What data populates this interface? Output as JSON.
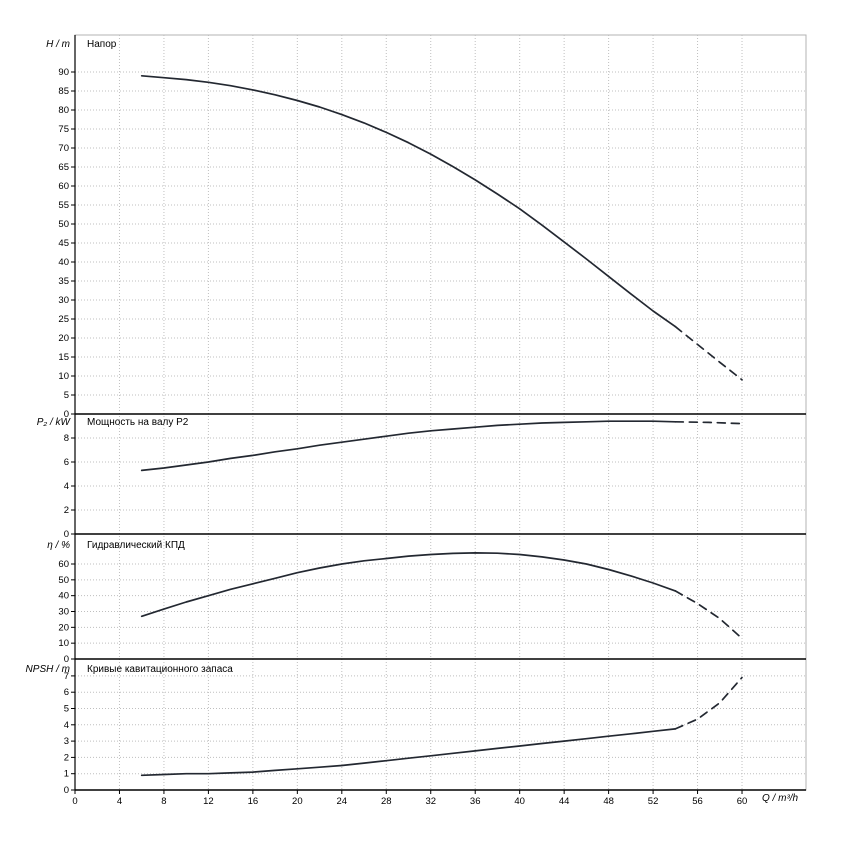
{
  "chart_data": {
    "type": "line",
    "grid": true,
    "legend": "none",
    "colors": {
      "curve": "#232831",
      "grid": "#bfbfbf",
      "axis": "#000000",
      "frame": "#b3b3b3"
    },
    "x_axis": {
      "label": "Q / m³/h",
      "min": 0,
      "max": 60,
      "tick_step": 4
    },
    "panels": [
      {
        "id": "head",
        "title": "Напор",
        "y_label": "H / m",
        "y_min": 0,
        "y_max": 90,
        "y_tick_step": 5,
        "series": [
          {
            "name": "head-curve",
            "style": "solid",
            "points": [
              [
                6,
                89.0
              ],
              [
                8,
                88.5
              ],
              [
                10,
                88.0
              ],
              [
                12,
                87.3
              ],
              [
                14,
                86.4
              ],
              [
                16,
                85.3
              ],
              [
                18,
                84.0
              ],
              [
                20,
                82.5
              ],
              [
                22,
                80.8
              ],
              [
                24,
                78.8
              ],
              [
                26,
                76.6
              ],
              [
                28,
                74.1
              ],
              [
                30,
                71.4
              ],
              [
                32,
                68.4
              ],
              [
                34,
                65.1
              ],
              [
                36,
                61.6
              ],
              [
                38,
                57.9
              ],
              [
                40,
                54.0
              ],
              [
                42,
                49.7
              ],
              [
                44,
                45.3
              ],
              [
                46,
                40.8
              ],
              [
                48,
                36.2
              ],
              [
                50,
                31.6
              ],
              [
                52,
                27.1
              ],
              [
                54,
                23.0
              ]
            ]
          },
          {
            "name": "head-extrapolation",
            "style": "dashed",
            "points": [
              [
                54,
                23.0
              ],
              [
                56,
                18.3
              ],
              [
                58,
                13.6
              ],
              [
                60,
                9.0
              ]
            ]
          }
        ]
      },
      {
        "id": "power",
        "title": "Мощность на валу P2",
        "y_label": "P₂ / kW",
        "y_min": 0,
        "y_max": 8,
        "y_tick_step": 2,
        "series": [
          {
            "name": "power-curve",
            "style": "solid",
            "points": [
              [
                6,
                5.3
              ],
              [
                8,
                5.5
              ],
              [
                10,
                5.75
              ],
              [
                12,
                6.0
              ],
              [
                14,
                6.3
              ],
              [
                16,
                6.55
              ],
              [
                18,
                6.85
              ],
              [
                20,
                7.1
              ],
              [
                22,
                7.4
              ],
              [
                24,
                7.65
              ],
              [
                26,
                7.9
              ],
              [
                28,
                8.15
              ],
              [
                30,
                8.4
              ],
              [
                32,
                8.6
              ],
              [
                34,
                8.75
              ],
              [
                36,
                8.9
              ],
              [
                38,
                9.05
              ],
              [
                40,
                9.15
              ],
              [
                42,
                9.25
              ],
              [
                44,
                9.3
              ],
              [
                46,
                9.35
              ],
              [
                48,
                9.4
              ],
              [
                50,
                9.4
              ],
              [
                52,
                9.4
              ],
              [
                54,
                9.35
              ]
            ]
          },
          {
            "name": "power-extrapolation",
            "style": "dashed",
            "points": [
              [
                54,
                9.35
              ],
              [
                57,
                9.3
              ],
              [
                60,
                9.2
              ]
            ]
          }
        ]
      },
      {
        "id": "efficiency",
        "title": "Гидравлический КПД",
        "y_label": "η / %",
        "y_min": 0,
        "y_max": 60,
        "y_tick_step": 10,
        "series": [
          {
            "name": "efficiency-curve",
            "style": "solid",
            "points": [
              [
                6,
                27
              ],
              [
                8,
                31.5
              ],
              [
                10,
                36
              ],
              [
                12,
                40
              ],
              [
                14,
                44
              ],
              [
                16,
                47.5
              ],
              [
                18,
                51
              ],
              [
                20,
                54.5
              ],
              [
                22,
                57.5
              ],
              [
                24,
                60
              ],
              [
                26,
                62
              ],
              [
                28,
                63.5
              ],
              [
                30,
                65
              ],
              [
                32,
                66
              ],
              [
                34,
                66.7
              ],
              [
                36,
                67
              ],
              [
                38,
                66.8
              ],
              [
                40,
                66
              ],
              [
                42,
                64.5
              ],
              [
                44,
                62.5
              ],
              [
                46,
                60
              ],
              [
                48,
                56.5
              ],
              [
                50,
                52.5
              ],
              [
                52,
                48
              ],
              [
                54,
                43
              ]
            ]
          },
          {
            "name": "efficiency-extrapolation",
            "style": "dashed",
            "points": [
              [
                54,
                43
              ],
              [
                56,
                35
              ],
              [
                58,
                25.5
              ],
              [
                60,
                13
              ]
            ]
          }
        ]
      },
      {
        "id": "npsh",
        "title": "Кривые кавитационного запаса",
        "y_label": "NPSH / m",
        "y_min": 0,
        "y_max": 7,
        "y_tick_step": 1,
        "series": [
          {
            "name": "npsh-curve",
            "style": "solid",
            "points": [
              [
                6,
                0.9
              ],
              [
                8,
                0.95
              ],
              [
                10,
                1.0
              ],
              [
                12,
                1.0
              ],
              [
                14,
                1.05
              ],
              [
                16,
                1.1
              ],
              [
                18,
                1.2
              ],
              [
                20,
                1.3
              ],
              [
                22,
                1.4
              ],
              [
                24,
                1.5
              ],
              [
                26,
                1.65
              ],
              [
                28,
                1.8
              ],
              [
                30,
                1.95
              ],
              [
                32,
                2.1
              ],
              [
                34,
                2.25
              ],
              [
                36,
                2.4
              ],
              [
                38,
                2.55
              ],
              [
                40,
                2.7
              ],
              [
                42,
                2.85
              ],
              [
                44,
                3.0
              ],
              [
                46,
                3.15
              ],
              [
                48,
                3.3
              ],
              [
                50,
                3.45
              ],
              [
                52,
                3.6
              ],
              [
                54,
                3.75
              ]
            ]
          },
          {
            "name": "npsh-extrapolation",
            "style": "dashed",
            "points": [
              [
                54,
                3.75
              ],
              [
                56,
                4.35
              ],
              [
                58,
                5.35
              ],
              [
                60,
                6.9
              ]
            ]
          }
        ]
      }
    ]
  }
}
